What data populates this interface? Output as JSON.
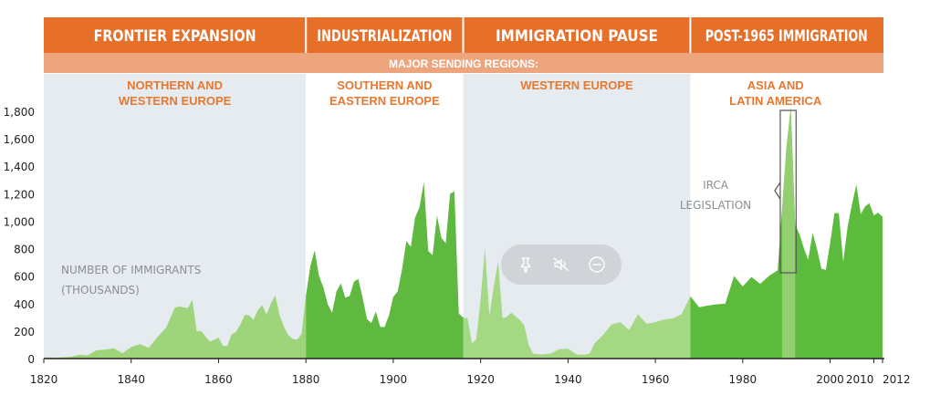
{
  "chart_data": {
    "type": "area",
    "title": "",
    "xlabel": "",
    "ylabel": "NUMBER OF IMMIGRANTS (THOUSANDS)",
    "ylabel_line1": "NUMBER OF IMMIGRANTS",
    "ylabel_line2": "(THOUSANDS)",
    "xlim": [
      1820,
      2012
    ],
    "ylim": [
      0,
      1800
    ],
    "x_ticks": [
      "1820",
      "1840",
      "1860",
      "1880",
      "1900",
      "1920",
      "1940",
      "1960",
      "1980",
      "2000",
      "2010",
      "2012"
    ],
    "y_ticks": [
      "0",
      "200",
      "400",
      "600",
      "800",
      "1,000",
      "1,200",
      "1,400",
      "1,600",
      "1,800"
    ],
    "eras": [
      {
        "label": "FRONTIER EXPANSION",
        "start": 1820,
        "end": 1880
      },
      {
        "label": "INDUSTRIALIZATION",
        "start": 1880,
        "end": 1916
      },
      {
        "label": "IMMIGRATION PAUSE",
        "start": 1916,
        "end": 1968
      },
      {
        "label": "POST-1965 IMMIGRATION",
        "start": 1968,
        "end": 2012
      }
    ],
    "sending_regions_heading": "MAJOR SENDING REGIONS:",
    "regions": [
      {
        "line1": "NORTHERN AND",
        "line2": "WESTERN EUROPE",
        "shaded": true
      },
      {
        "line1": "SOUTHERN AND",
        "line2": "EASTERN EUROPE",
        "shaded": false
      },
      {
        "line1": "WESTERN EUROPE",
        "line2": "",
        "shaded": true
      },
      {
        "line1": "ASIA AND",
        "line2": "LATIN AMERICA",
        "shaded": false
      }
    ],
    "annotation": {
      "line1": "IRCA",
      "line2": "LEGISLATION",
      "start": 1989,
      "end": 1992
    },
    "series": [
      {
        "values": [
          [
            1820,
            8
          ],
          [
            1822,
            6
          ],
          [
            1824,
            8
          ],
          [
            1826,
            11
          ],
          [
            1828,
            27
          ],
          [
            1830,
            23
          ],
          [
            1832,
            60
          ],
          [
            1834,
            65
          ],
          [
            1836,
            76
          ],
          [
            1838,
            38
          ],
          [
            1840,
            84
          ],
          [
            1842,
            104
          ],
          [
            1844,
            79
          ],
          [
            1846,
            154
          ],
          [
            1848,
            226
          ],
          [
            1850,
            370
          ],
          [
            1851,
            380
          ],
          [
            1852,
            372
          ],
          [
            1853,
            368
          ],
          [
            1854,
            428
          ],
          [
            1855,
            200
          ],
          [
            1856,
            200
          ],
          [
            1858,
            123
          ],
          [
            1860,
            153
          ],
          [
            1861,
            92
          ],
          [
            1862,
            92
          ],
          [
            1863,
            176
          ],
          [
            1864,
            193
          ],
          [
            1865,
            248
          ],
          [
            1866,
            318
          ],
          [
            1867,
            315
          ],
          [
            1868,
            282
          ],
          [
            1869,
            352
          ],
          [
            1870,
            387
          ],
          [
            1871,
            321
          ],
          [
            1872,
            404
          ],
          [
            1873,
            460
          ],
          [
            1874,
            313
          ],
          [
            1875,
            227
          ],
          [
            1876,
            170
          ],
          [
            1877,
            142
          ],
          [
            1878,
            138
          ],
          [
            1879,
            178
          ],
          [
            1880,
            457
          ],
          [
            1881,
            669
          ],
          [
            1882,
            789
          ],
          [
            1883,
            603
          ],
          [
            1884,
            519
          ],
          [
            1885,
            395
          ],
          [
            1886,
            334
          ],
          [
            1887,
            490
          ],
          [
            1888,
            547
          ],
          [
            1889,
            444
          ],
          [
            1890,
            455
          ],
          [
            1891,
            560
          ],
          [
            1892,
            579
          ],
          [
            1893,
            440
          ],
          [
            1894,
            286
          ],
          [
            1895,
            259
          ],
          [
            1896,
            343
          ],
          [
            1897,
            231
          ],
          [
            1898,
            229
          ],
          [
            1899,
            312
          ],
          [
            1900,
            449
          ],
          [
            1901,
            488
          ],
          [
            1902,
            649
          ],
          [
            1903,
            857
          ],
          [
            1904,
            813
          ],
          [
            1905,
            1026
          ],
          [
            1906,
            1100
          ],
          [
            1907,
            1285
          ],
          [
            1908,
            783
          ],
          [
            1909,
            752
          ],
          [
            1910,
            1042
          ],
          [
            1911,
            879
          ],
          [
            1912,
            838
          ],
          [
            1913,
            1198
          ],
          [
            1914,
            1218
          ],
          [
            1915,
            327
          ],
          [
            1916,
            299
          ],
          [
            1917,
            295
          ],
          [
            1918,
            111
          ],
          [
            1919,
            141
          ],
          [
            1920,
            430
          ],
          [
            1921,
            805
          ],
          [
            1922,
            310
          ],
          [
            1923,
            523
          ],
          [
            1924,
            707
          ],
          [
            1925,
            294
          ],
          [
            1926,
            304
          ],
          [
            1927,
            335
          ],
          [
            1928,
            307
          ],
          [
            1929,
            280
          ],
          [
            1930,
            242
          ],
          [
            1931,
            97
          ],
          [
            1932,
            36
          ],
          [
            1934,
            30
          ],
          [
            1936,
            36
          ],
          [
            1938,
            68
          ],
          [
            1940,
            71
          ],
          [
            1942,
            29
          ],
          [
            1944,
            29
          ],
          [
            1945,
            38
          ],
          [
            1946,
            108
          ],
          [
            1948,
            171
          ],
          [
            1950,
            249
          ],
          [
            1952,
            265
          ],
          [
            1954,
            208
          ],
          [
            1956,
            322
          ],
          [
            1958,
            253
          ],
          [
            1960,
            265
          ],
          [
            1962,
            284
          ],
          [
            1964,
            292
          ],
          [
            1966,
            323
          ],
          [
            1968,
            454
          ],
          [
            1970,
            373
          ],
          [
            1972,
            385
          ],
          [
            1974,
            395
          ],
          [
            1976,
            399
          ],
          [
            1978,
            601
          ],
          [
            1980,
            525
          ],
          [
            1982,
            594
          ],
          [
            1984,
            544
          ],
          [
            1986,
            602
          ],
          [
            1988,
            643
          ],
          [
            1989,
            1090
          ],
          [
            1990,
            1536
          ],
          [
            1991,
            1827
          ],
          [
            1992,
            974
          ],
          [
            1993,
            904
          ],
          [
            1994,
            804
          ],
          [
            1995,
            720
          ],
          [
            1996,
            916
          ],
          [
            1997,
            798
          ],
          [
            1998,
            654
          ],
          [
            1999,
            645
          ],
          [
            2000,
            841
          ],
          [
            2001,
            1059
          ],
          [
            2002,
            1059
          ],
          [
            2003,
            704
          ],
          [
            2004,
            958
          ],
          [
            2005,
            1122
          ],
          [
            2006,
            1266
          ],
          [
            2007,
            1052
          ],
          [
            2008,
            1107
          ],
          [
            2009,
            1131
          ],
          [
            2010,
            1043
          ],
          [
            2011,
            1062
          ],
          [
            2012,
            1031
          ]
        ]
      }
    ]
  },
  "overlay": {
    "pin_label": "Pin",
    "mute_label": "Mute",
    "close_label": "Minimize"
  }
}
